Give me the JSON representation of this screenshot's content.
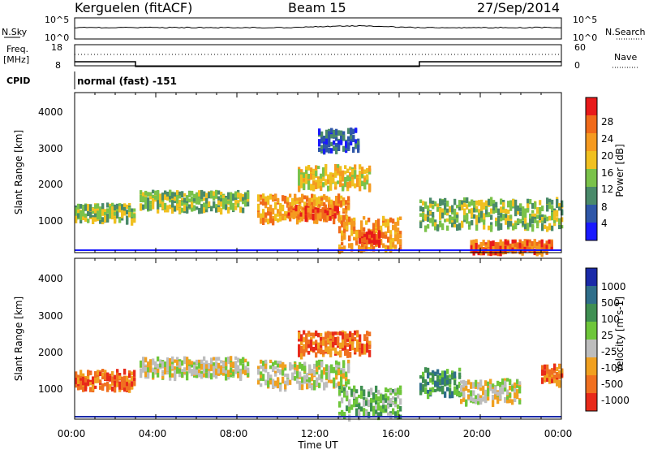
{
  "header": {
    "radar": "Kerguelen (fitACF)",
    "beam": "Beam 15",
    "date": "27/Sep/2014"
  },
  "noise_panel": {
    "left_label": "N.Sky",
    "left_ticks": [
      "10^5",
      "10^0"
    ],
    "right_label": "N.Search",
    "right_ticks": [
      "10^5",
      "10^0"
    ]
  },
  "freq_panel": {
    "left_label_1": "Freq.",
    "left_label_2": "[MHz]",
    "left_ticks": [
      "18",
      "8"
    ],
    "right_label": "Nave",
    "right_ticks": [
      "60",
      "0"
    ]
  },
  "cpid": {
    "label": "CPID",
    "value": "normal (fast) -151"
  },
  "x_axis": {
    "label": "Time UT",
    "ticks": [
      "00:00",
      "04:00",
      "08:00",
      "12:00",
      "16:00",
      "20:00",
      "00:00"
    ]
  },
  "power_panel": {
    "ylabel": "Slant Range [km]",
    "yticks": [
      "1000",
      "2000",
      "3000",
      "4000"
    ],
    "colorbar_label": "Power [dB]",
    "colorbar_ticks": [
      "4",
      "8",
      "12",
      "16",
      "20",
      "24",
      "28"
    ],
    "colors": [
      "#1a1aff",
      "#2f57a8",
      "#4a8a6a",
      "#7ac24a",
      "#f0c020",
      "#f59a20",
      "#f06a1a",
      "#e81a1a"
    ]
  },
  "velocity_panel": {
    "ylabel": "Slant Range [km]",
    "yticks": [
      "1000",
      "2000",
      "3000",
      "4000"
    ],
    "colorbar_label": "Velocity [m s-1]",
    "colorbar_ticks": [
      "1000",
      "500",
      "100",
      "25",
      "-25",
      "-100",
      "-500",
      "-1000"
    ],
    "colors": [
      "#1a2aa8",
      "#2f6e8a",
      "#3f8f52",
      "#6ec63a",
      "#bdbdbd",
      "#f0a020",
      "#f07020",
      "#e82a1a"
    ]
  },
  "chart_data": {
    "type": "heatmap",
    "x": {
      "unit": "hours UT",
      "range": [
        0,
        24
      ]
    },
    "y": {
      "unit": "km",
      "range": [
        180,
        4550
      ]
    },
    "power_bands": [
      {
        "t0": 0.0,
        "t1": 3.0,
        "r0": 1100,
        "r1": 1550,
        "level": 3
      },
      {
        "t0": 3.2,
        "t1": 8.5,
        "r0": 1400,
        "r1": 1900,
        "level": 3
      },
      {
        "t0": 9.0,
        "t1": 13.5,
        "r0": 1100,
        "r1": 1800,
        "level": 5
      },
      {
        "t0": 10.5,
        "t1": 13.0,
        "r0": 1200,
        "r1": 1500,
        "level": 6
      },
      {
        "t0": 13.0,
        "t1": 16.0,
        "r0": 300,
        "r1": 1200,
        "level": 5
      },
      {
        "t0": 14.0,
        "t1": 15.0,
        "r0": 500,
        "r1": 800,
        "level": 7
      },
      {
        "t0": 17.0,
        "t1": 24.0,
        "r0": 900,
        "r1": 1700,
        "level": 3
      },
      {
        "t0": 19.5,
        "t1": 23.5,
        "r0": 250,
        "r1": 550,
        "level": 6
      },
      {
        "t0": 11.0,
        "t1": 14.5,
        "r0": 2000,
        "r1": 2600,
        "level": 4
      },
      {
        "t0": 12.0,
        "t1": 14.0,
        "r0": 3000,
        "r1": 3600,
        "level": 1
      }
    ],
    "velocity_bands": [
      {
        "t0": 0.0,
        "t1": 3.0,
        "r0": 1050,
        "r1": 1550,
        "level": 6
      },
      {
        "t0": 3.2,
        "t1": 8.5,
        "r0": 1400,
        "r1": 1900,
        "level": 4
      },
      {
        "t0": 9.0,
        "t1": 13.5,
        "r0": 1100,
        "r1": 1800,
        "level": 4
      },
      {
        "t0": 13.0,
        "t1": 16.0,
        "r0": 300,
        "r1": 1100,
        "level": 3
      },
      {
        "t0": 17.0,
        "t1": 19.0,
        "r0": 900,
        "r1": 1600,
        "level": 2
      },
      {
        "t0": 19.0,
        "t1": 22.0,
        "r0": 700,
        "r1": 1300,
        "level": 4
      },
      {
        "t0": 23.0,
        "t1": 24.0,
        "r0": 1200,
        "r1": 1700,
        "level": 6
      },
      {
        "t0": 11.0,
        "t1": 14.5,
        "r0": 2000,
        "r1": 2600,
        "level": 6
      }
    ],
    "frequency": [
      {
        "t": 0.0,
        "f": 8.5
      },
      {
        "t": 3.0,
        "f": 8.5
      },
      {
        "t": 3.0,
        "f": 5.6
      },
      {
        "t": 17.0,
        "f": 5.6
      },
      {
        "t": 17.0,
        "f": 8.5
      },
      {
        "t": 24.0,
        "f": 8.5
      }
    ]
  }
}
